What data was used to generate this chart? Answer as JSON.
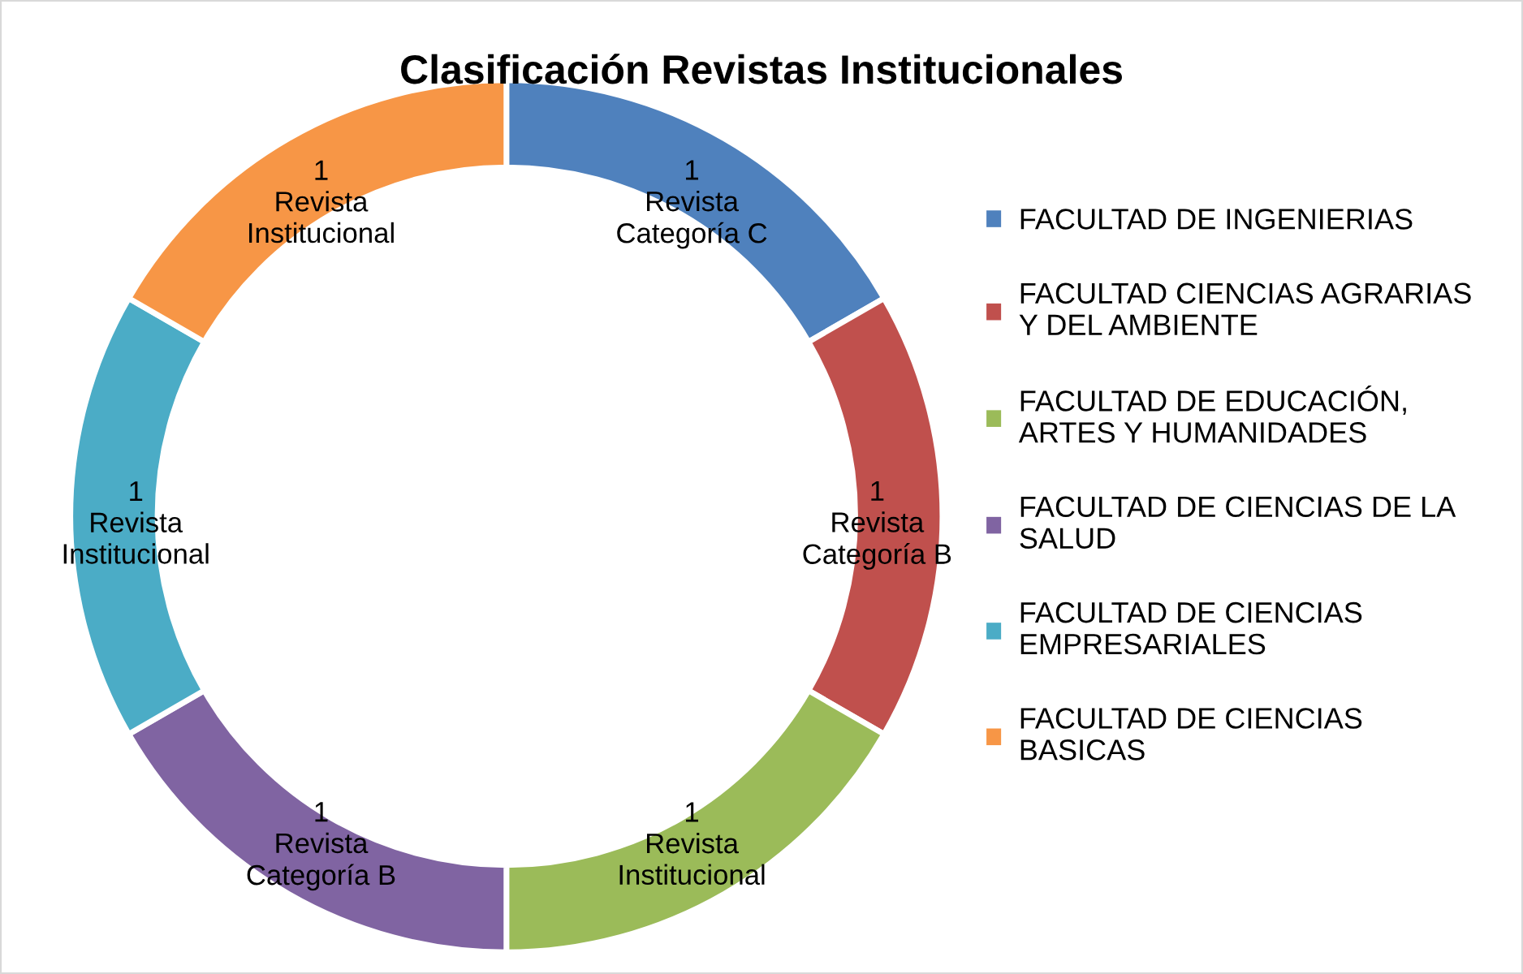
{
  "chart_data": {
    "type": "donut",
    "title": "Clasificación Revistas Institucionales",
    "categories": [
      "FACULTAD DE INGENIERIAS",
      "FACULTAD CIENCIAS AGRARIAS Y DEL AMBIENTE",
      "FACULTAD DE EDUCACIÓN, ARTES Y HUMANIDADES",
      "FACULTAD DE CIENCIAS DE LA SALUD",
      "FACULTAD DE CIENCIAS EMPRESARIALES",
      "FACULTAD DE CIENCIAS BASICAS"
    ],
    "values": [
      1,
      1,
      1,
      1,
      1,
      1
    ],
    "colors": [
      "#4f81bd",
      "#c0504d",
      "#9bbb59",
      "#8064a2",
      "#4bacc6",
      "#f79646"
    ],
    "value_labels": [
      "1\nRevista\nCategoría C",
      "1\nRevista\nCategoría B",
      "1\nRevista\nInstitucional",
      "1\nRevista\nCategoría B",
      "1\nRevista\nInstitucional",
      "1\nRevista\nInstitucional"
    ],
    "legend": "right"
  }
}
